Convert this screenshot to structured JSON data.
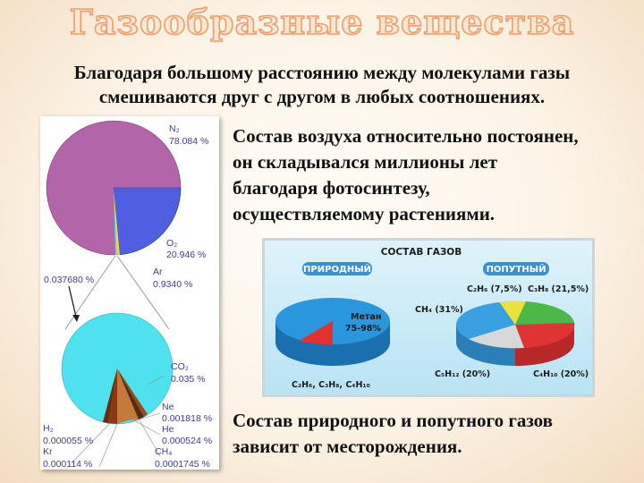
{
  "title": "Газообразные вещества",
  "intro": {
    "line1": "Благодаря большому расстоянию между молекулами газы",
    "line2": "смешиваются друг с другом в любых соотношениях."
  },
  "paragraph_air": {
    "line1": "Состав воздуха относительно постоянен,",
    "line2": "он складывался миллионы лет",
    "line3": "благодаря фотосинтезу,",
    "line4": "осуществляемому растениями."
  },
  "paragraph_gas": {
    "line1": "Состав природного и попутного газов",
    "line2": "зависит от месторождения."
  },
  "air_chart": {
    "main_pie": [
      {
        "name": "N₂",
        "value": "78.084 %",
        "percent": 78.084,
        "color": "#b365a9"
      },
      {
        "name": "O₂",
        "value": "20.946 %",
        "percent": 20.946,
        "color": "#4f5fe0"
      },
      {
        "name": "Ar",
        "value": "0.9340 %",
        "percent": 0.934,
        "color": "#e8d65a"
      },
      {
        "name": "",
        "value": "0.037680 %",
        "percent": 0.03768,
        "color": "#42e0e8"
      }
    ],
    "detail_pie": [
      {
        "name": "CO₂",
        "value": "0.035 %",
        "color": "#4fe2ee"
      },
      {
        "name": "Ne",
        "value": "0.001818 %",
        "color": "#8a3a12"
      },
      {
        "name": "He",
        "value": "0.000524 %",
        "color": "#6b2b0c"
      },
      {
        "name": "CH₄",
        "value": "0.0001745 %",
        "color": "#c47a3a"
      },
      {
        "name": "H₂",
        "value": "0.000055 %",
        "color": "#5a2a10"
      },
      {
        "name": "Kr",
        "value": "0.000114 %",
        "color": "#9a4a1a"
      }
    ]
  },
  "gas_chart": {
    "header": "СОСТАВ ГАЗОВ",
    "natural": {
      "label": "ПРИРОДНЫЙ",
      "main_label": "Метан",
      "main_value": "75-98%",
      "bottom_label": "C₂H₆, C₃H₈, C₄H₁₀",
      "colors": {
        "main": "#2a96dc",
        "other": "#e53030"
      }
    },
    "associated": {
      "label": "ПОПУТНЫЙ",
      "segments": [
        {
          "name": "CH₄ (31%)",
          "percent": 31,
          "color": "#3aa0e0"
        },
        {
          "name": "C₂H₆ (7,5%)",
          "percent": 7.5,
          "color": "#eae23c"
        },
        {
          "name": "C₃H₈ (21,5%)",
          "percent": 21.5,
          "color": "#4cb848"
        },
        {
          "name": "C₄H₁₀ (20%)",
          "percent": 20,
          "color": "#e03434"
        },
        {
          "name": "C₅H₁₂ (20%)",
          "percent": 20,
          "color": "#d8d8d8"
        }
      ]
    }
  }
}
